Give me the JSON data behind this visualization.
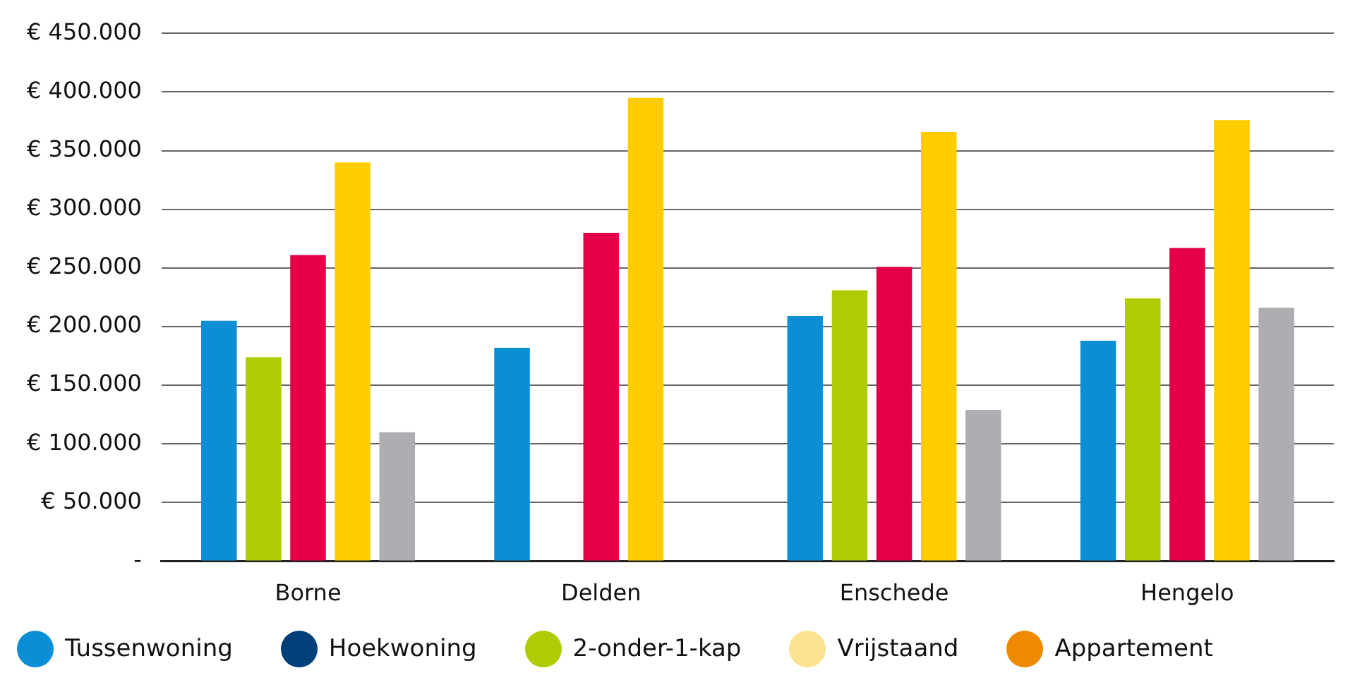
{
  "chart_data": {
    "type": "bar",
    "categories": [
      "Borne",
      "Delden",
      "Enschede",
      "Hengelo"
    ],
    "series": [
      {
        "name": "Tussenwoning",
        "color": "#0a8fd6",
        "values": [
          205000,
          182000,
          209000,
          188000
        ]
      },
      {
        "name": "Hoekwoning",
        "color": "#003f7a",
        "values": [
          null,
          null,
          null,
          null
        ]
      },
      {
        "name": "2-onder-1-kap",
        "color": "#afcb05",
        "values": [
          174000,
          null,
          231000,
          224000
        ]
      },
      {
        "name": "Vrijstaand",
        "color": "#fde28f",
        "values": [
          null,
          null,
          null,
          null
        ]
      },
      {
        "name": "Appartement",
        "color": "#ef8a00",
        "values": [
          null,
          null,
          null,
          null
        ]
      },
      {
        "color": "#e30046",
        "values": [
          261000,
          280000,
          251000,
          267000
        ]
      },
      {
        "color": "#ffcc00",
        "values": [
          340000,
          395000,
          366000,
          376000
        ]
      },
      {
        "color": "#aeaeb2",
        "values": [
          110000,
          null,
          129000,
          216000
        ]
      }
    ],
    "ylim": [
      0,
      450000
    ],
    "yticks": [
      {
        "value": 0,
        "label": "-"
      },
      {
        "value": 50000,
        "label": "€ 50.000"
      },
      {
        "value": 100000,
        "label": "€ 100.000"
      },
      {
        "value": 150000,
        "label": "€ 150.000"
      },
      {
        "value": 200000,
        "label": "€ 200.000"
      },
      {
        "value": 250000,
        "label": "€ 250.000"
      },
      {
        "value": 300000,
        "label": "€ 300.000"
      },
      {
        "value": 350000,
        "label": "€ 350.000"
      },
      {
        "value": 400000,
        "label": "€ 400.000"
      },
      {
        "value": 450000,
        "label": "€ 450.000"
      }
    ],
    "grid": "y",
    "legend": "bottom"
  }
}
